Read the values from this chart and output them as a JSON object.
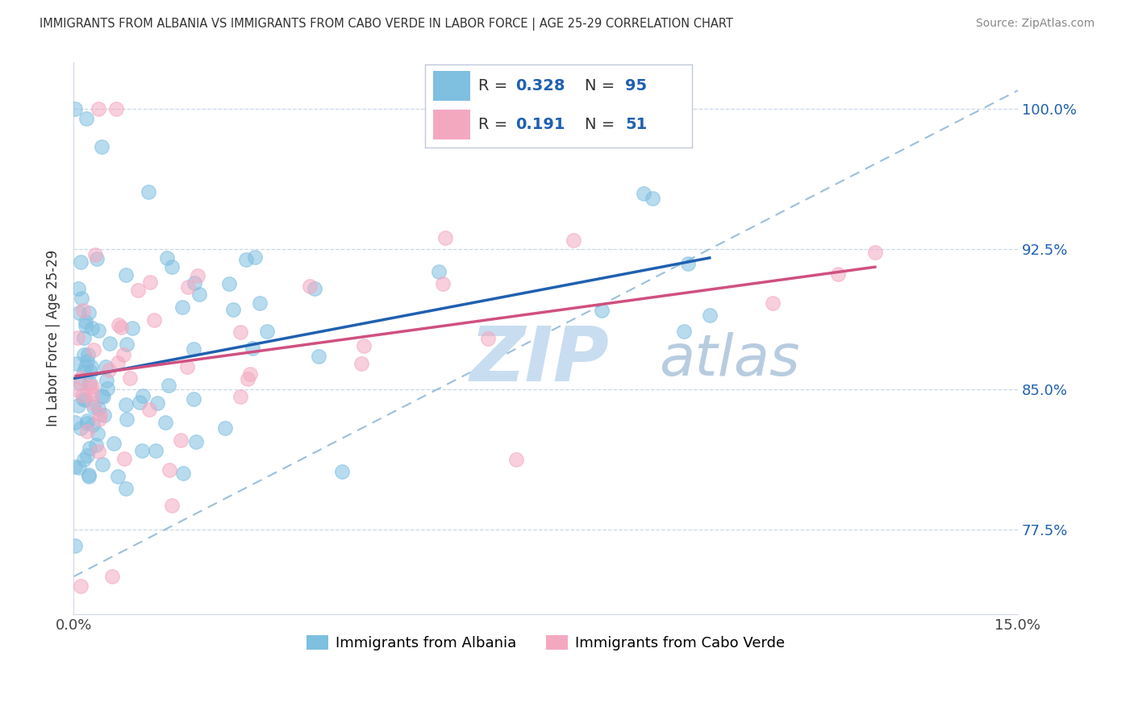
{
  "title": "IMMIGRANTS FROM ALBANIA VS IMMIGRANTS FROM CABO VERDE IN LABOR FORCE | AGE 25-29 CORRELATION CHART",
  "source": "Source: ZipAtlas.com",
  "ylabel": "In Labor Force | Age 25-29",
  "xlim": [
    0.0,
    15.0
  ],
  "ylim": [
    73.0,
    102.5
  ],
  "yticks": [
    77.5,
    85.0,
    92.5,
    100.0
  ],
  "ytick_labels": [
    "77.5%",
    "85.0%",
    "92.5%",
    "100.0%"
  ],
  "xticks": [
    0.0,
    15.0
  ],
  "xtick_labels": [
    "0.0%",
    "15.0%"
  ],
  "albania_color": "#7fbfe0",
  "albania_edge_color": "#5a9ec8",
  "cabo_verde_color": "#f4a8c0",
  "cabo_verde_edge_color": "#d47898",
  "albania_line_color": "#2060b0",
  "cabo_verde_line_color": "#d05080",
  "diag_line_color": "#90b8d8",
  "grid_color": "#c8d8e8",
  "legend_border_color": "#c0c8d8",
  "albania_R": "0.328",
  "albania_N": "95",
  "cabo_verde_R": "0.191",
  "cabo_verde_N": "51",
  "legend_label_albania": "Immigrants from Albania",
  "legend_label_cabo_verde": "Immigrants from Cabo Verde",
  "watermark_color": "#c8ddf0",
  "right_label_color": "#2060b0"
}
